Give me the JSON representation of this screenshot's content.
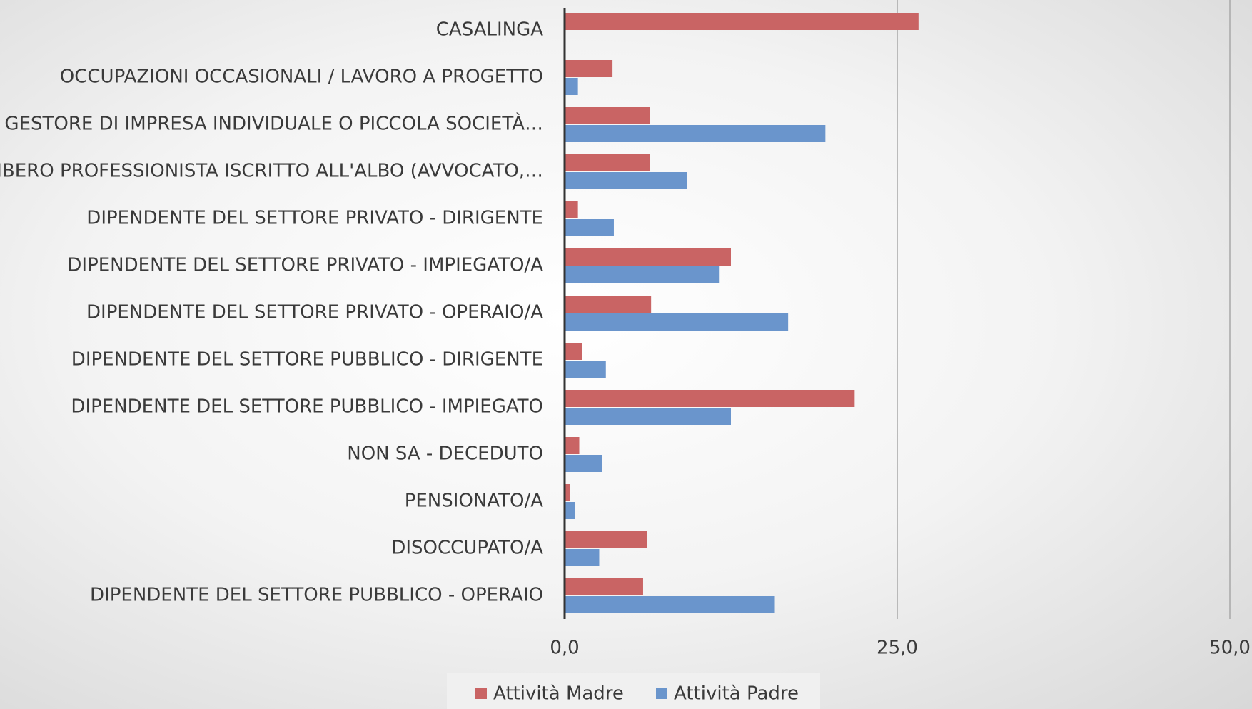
{
  "chart_data": {
    "type": "hbar",
    "categories": [
      "CASALINGA",
      "OCCUPAZIONI OCCASIONALI / LAVORO A PROGETTO",
      "GESTORE DI IMPRESA INDIVIDUALE O PICCOLA SOCIETÀ…",
      "LIBERO PROFESSIONISTA ISCRITTO ALL'ALBO (AVVOCATO,…",
      "DIPENDENTE DEL SETTORE PRIVATO  - DIRIGENTE",
      "DIPENDENTE DEL SETTORE PRIVATO  - IMPIEGATO/A",
      "DIPENDENTE DEL SETTORE PRIVATO - OPERAIO/A",
      "DIPENDENTE DEL SETTORE PUBBLICO - DIRIGENTE",
      "DIPENDENTE DEL SETTORE PUBBLICO - IMPIEGATO",
      "NON SA - DECEDUTO",
      "PENSIONATO/A",
      "DISOCCUPATO/A",
      "DIPENDENTE DEL SETTORE PUBBLICO - OPERAIO"
    ],
    "series": [
      {
        "name": "Attività Madre",
        "color": "#c96464",
        "values": [
          26.6,
          3.6,
          6.4,
          6.4,
          1.0,
          12.5,
          6.5,
          1.3,
          21.8,
          1.1,
          0.4,
          6.2,
          5.9
        ]
      },
      {
        "name": "Attività Padre",
        "color": "#6a95cc",
        "values": [
          0,
          1.0,
          19.6,
          9.2,
          3.7,
          11.6,
          16.8,
          3.1,
          12.5,
          2.8,
          0.8,
          2.6,
          15.8
        ]
      }
    ],
    "xlim": [
      0,
      50
    ],
    "xticks": [
      {
        "value": 0,
        "label": "0,0"
      },
      {
        "value": 25,
        "label": "25,0"
      },
      {
        "value": 50,
        "label": "50,0"
      }
    ],
    "grid": true,
    "legend": "bottom"
  }
}
